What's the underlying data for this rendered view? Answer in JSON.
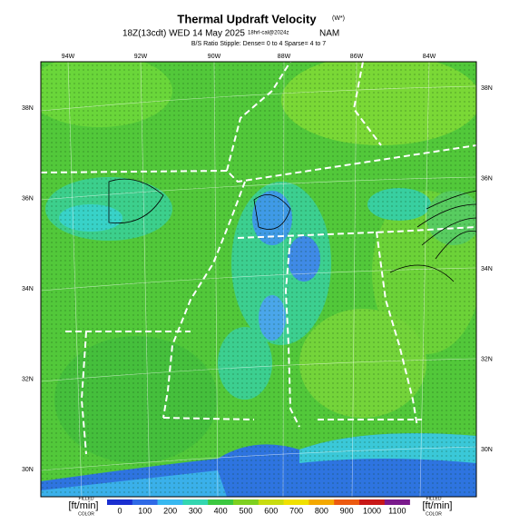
{
  "header": {
    "title": "Thermal Updraft Velocity",
    "title_unit": "(W*)",
    "subtitle_time": "18Z(13cdt) WED 14 May 2025",
    "subtitle_run": "18hrl-cal@2024z",
    "subtitle_model": "NAM",
    "stipple_note": "B/S Ratio Stipple: Dense= 0 to 4 Sparse= 4 to 7"
  },
  "map": {
    "lon_labels": [
      "94W",
      "92W",
      "90W",
      "88W",
      "86W",
      "84W"
    ],
    "lat_labels_left": [
      "38N",
      "36N",
      "34N",
      "32N",
      "30N"
    ],
    "lat_labels_right": [
      "38N",
      "36N",
      "34N",
      "32N",
      "30N"
    ]
  },
  "colorbar": {
    "left_top": "FILLED",
    "left_unit": "[ft/min]",
    "left_bottom": "COLOR",
    "right_top": "FILLED",
    "right_unit": "[ft/min]",
    "right_bottom": "COLOR",
    "ticks": [
      0,
      100,
      200,
      300,
      400,
      500,
      600,
      700,
      800,
      900,
      1000,
      1100
    ],
    "colors": [
      "#1a2fd0",
      "#2f6ae6",
      "#38b8f0",
      "#33d6b0",
      "#3cc840",
      "#7ed020",
      "#c8dc10",
      "#f0e000",
      "#f4a800",
      "#ec5a10",
      "#c81818",
      "#7a1a8c"
    ]
  }
}
